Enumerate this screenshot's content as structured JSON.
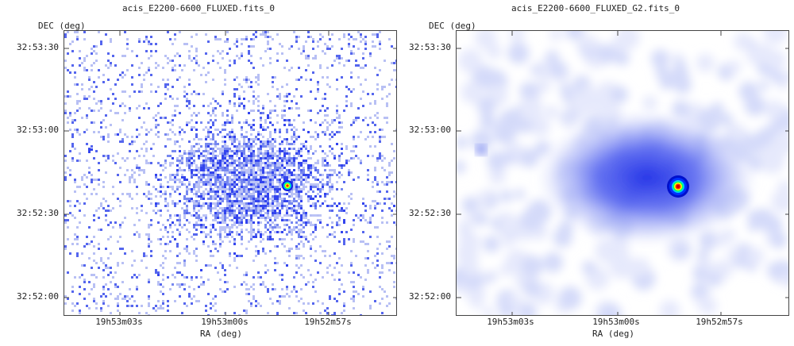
{
  "chart_data": [
    {
      "type": "image",
      "title": "acis_E2200-6600_FLUXED.fits_0",
      "xlabel": "RA (deg)",
      "ylabel": "DEC (deg)",
      "x_ticks": [
        "19h53m03s",
        "19h53m00s",
        "19h52m57s"
      ],
      "y_ticks": [
        "32:53:30",
        "32:53:00",
        "32:52:30",
        "32:52:00"
      ],
      "colormap": [
        "#ffffff",
        "#ccd4ff",
        "#2233ff",
        "#00ffff",
        "#00ff00",
        "#ffff00",
        "#ff0000"
      ],
      "style": "raw-counts"
    },
    {
      "type": "image",
      "title": "acis_E2200-6600_FLUXED_G2.fits_0",
      "xlabel": "RA (deg)",
      "ylabel": "DEC (deg)",
      "x_ticks": [
        "19h53m03s",
        "19h53m00s",
        "19h52m57s"
      ],
      "y_ticks": [
        "32:53:30",
        "32:53:00",
        "32:52:30",
        "32:52:00"
      ],
      "colormap": [
        "#ffffff",
        "#ccd4ff",
        "#2233ff",
        "#00ffff",
        "#00ff00",
        "#ffff00",
        "#ff0000"
      ],
      "style": "gaussian-smoothed"
    }
  ]
}
